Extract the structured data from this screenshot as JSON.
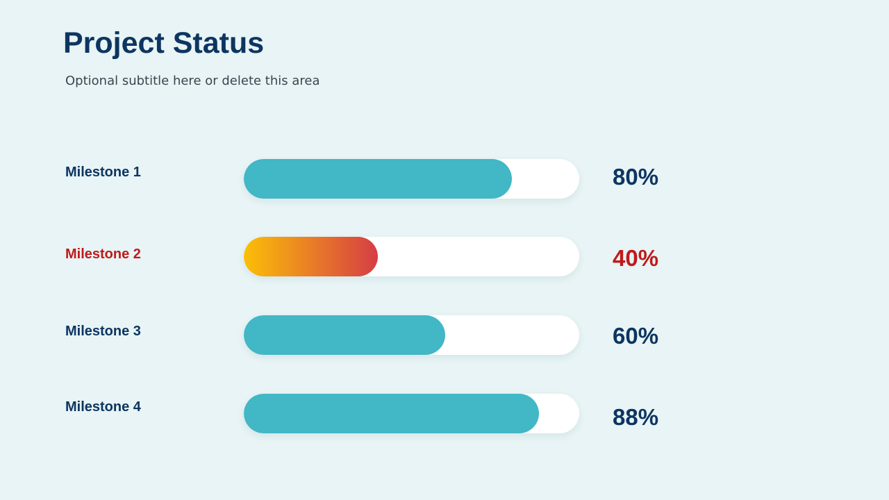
{
  "slide": {
    "title": "Project Status",
    "subtitle": "Optional subtitle here or delete this area"
  },
  "colors": {
    "background": "#e8f4f5",
    "title": "#0d3561",
    "normal_text": "#0d3561",
    "highlight_text": "#c01a1a",
    "bar_fill": "#42b7c5",
    "highlight_gradient_start": "#fbbf07",
    "highlight_gradient_end": "#d63d45",
    "track": "#ffffff"
  },
  "chart_data": {
    "type": "bar",
    "orientation": "horizontal",
    "categories": [
      "Milestone  1",
      "Milestone  2",
      "Milestone  3",
      "Milestone  4"
    ],
    "values": [
      80,
      40,
      60,
      88
    ],
    "value_labels": [
      "80%",
      "40%",
      "60%",
      "88%"
    ],
    "highlighted": [
      false,
      true,
      false,
      false
    ],
    "xlim": [
      0,
      100
    ],
    "grid": false,
    "title": "",
    "xlabel": "",
    "ylabel": ""
  }
}
